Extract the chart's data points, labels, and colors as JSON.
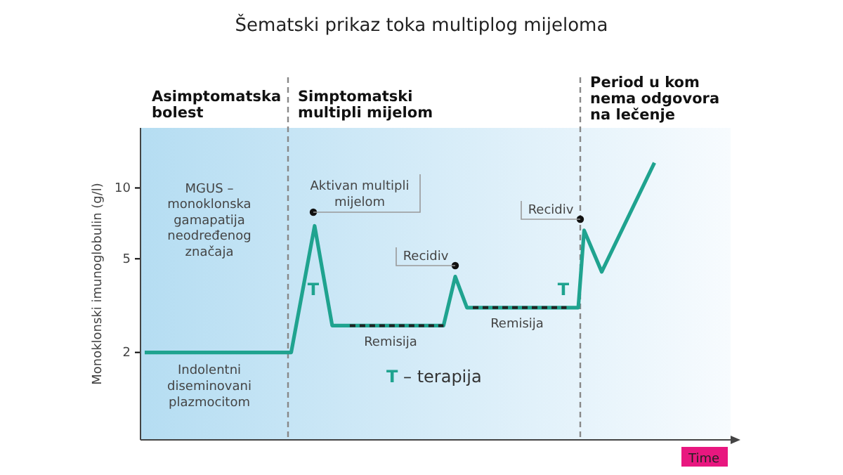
{
  "chart_data": {
    "type": "line",
    "title": "Šematski prikaz toka multiplog mijeloma",
    "ylabel": "Monoklonski imunoglobulin (g/l)",
    "log": "y",
    "ylim": [
      0.85,
      18
    ],
    "yticks": [
      2,
      5,
      10
    ],
    "tick_labels": "y",
    "grid": false,
    "marker": "none",
    "categories": [
      null,
      null,
      null,
      null,
      null,
      null,
      null,
      null,
      null,
      null,
      null,
      null,
      null,
      null,
      null,
      null,
      null,
      null,
      null,
      null,
      null,
      null,
      null,
      null,
      null,
      null,
      null,
      null,
      null,
      null,
      null,
      null,
      null,
      null,
      null,
      null,
      null,
      null,
      null,
      null,
      null,
      null,
      null,
      null,
      null,
      null,
      null,
      null,
      null,
      null,
      null,
      null,
      null,
      null,
      null,
      null,
      null,
      null,
      null,
      null,
      null,
      null,
      null,
      null,
      null,
      null,
      null,
      null,
      null,
      null,
      null,
      null,
      null,
      null,
      null,
      null,
      null,
      null,
      null,
      null,
      null,
      null,
      null,
      null,
      null,
      null,
      null,
      null,
      null,
      null,
      null,
      null,
      null,
      null,
      null,
      null,
      null,
      null,
      null,
      null,
      null
    ],
    "series": [
      {
        "color": "#1fa38f",
        "line_style": "solid",
        "values": [
          2,
          null,
          null,
          null,
          null,
          null,
          null,
          null,
          null,
          null,
          null,
          null,
          null,
          null,
          null,
          null,
          null,
          null,
          null,
          null,
          null,
          null,
          null,
          null,
          null,
          2,
          null,
          null,
          null,
          6.9,
          null,
          null,
          2.6,
          null,
          null,
          2.6,
          null,
          null,
          null,
          null,
          null,
          null,
          null,
          null,
          null,
          null,
          null,
          null,
          null,
          null,
          null,
          2.6,
          null,
          4.2,
          null,
          3.1,
          3.1,
          null,
          null,
          null,
          null,
          null,
          null,
          null,
          null,
          null,
          null,
          null,
          null,
          null,
          null,
          null,
          3.1,
          null,
          3.1,
          6.6,
          null,
          null,
          4.4,
          null,
          null,
          null,
          null,
          null,
          null,
          null,
          null,
          12.8,
          null,
          null,
          null,
          null,
          null,
          null,
          null,
          null,
          null,
          null,
          null,
          null,
          null
        ]
      },
      {
        "color": "#222222",
        "line_style": "dashed",
        "values": [
          null,
          null,
          null,
          null,
          null,
          null,
          null,
          null,
          null,
          null,
          null,
          null,
          null,
          null,
          null,
          null,
          null,
          null,
          null,
          null,
          null,
          null,
          null,
          null,
          null,
          null,
          null,
          null,
          null,
          null,
          null,
          null,
          null,
          null,
          null,
          2.6,
          null,
          null,
          null,
          null,
          null,
          null,
          null,
          null,
          null,
          null,
          null,
          null,
          null,
          null,
          null,
          2.6,
          null,
          null,
          null,
          null,
          null,
          null,
          null,
          null,
          null,
          null,
          null,
          null,
          null,
          null,
          null,
          null,
          null,
          null,
          null,
          null,
          null,
          null,
          null,
          null,
          null,
          null,
          null,
          null,
          null,
          null,
          null,
          null,
          null,
          null,
          null,
          null,
          null,
          null,
          null,
          null,
          null,
          null,
          null,
          null,
          null,
          null,
          null,
          null,
          null
        ]
      },
      {
        "color": "#222222",
        "line_style": "dashed",
        "values": [
          null,
          null,
          null,
          null,
          null,
          null,
          null,
          null,
          null,
          null,
          null,
          null,
          null,
          null,
          null,
          null,
          null,
          null,
          null,
          null,
          null,
          null,
          null,
          null,
          null,
          null,
          null,
          null,
          null,
          null,
          null,
          null,
          null,
          null,
          null,
          null,
          null,
          null,
          null,
          null,
          null,
          null,
          null,
          null,
          null,
          null,
          null,
          null,
          null,
          null,
          null,
          null,
          null,
          null,
          null,
          null,
          3.1,
          null,
          null,
          null,
          null,
          null,
          null,
          null,
          null,
          null,
          null,
          null,
          null,
          null,
          null,
          null,
          3.1,
          null,
          null,
          null,
          null,
          null,
          null,
          null,
          null,
          null,
          null,
          null,
          null,
          null,
          null,
          null,
          null,
          null,
          null,
          null,
          null,
          null,
          null,
          null,
          null,
          null,
          null,
          null,
          null
        ]
      }
    ],
    "annotations": [
      "Asimptomatska\nbolest",
      "Simptomatski\nmultipli mijelom",
      "Period u kom\nnema odgovora\nna lečenje",
      "MGUS –\nmonoklonska\ngamapatija\nneodređenog\nznačaja",
      "Indolentni\ndiseminovani\nplazmocitom",
      "Remisija",
      "Remisija",
      "T",
      "T",
      "T – terapija",
      "Aktivan multipli\nmijelom",
      "Recidiv",
      "Recidiv",
      "Time"
    ]
  }
}
